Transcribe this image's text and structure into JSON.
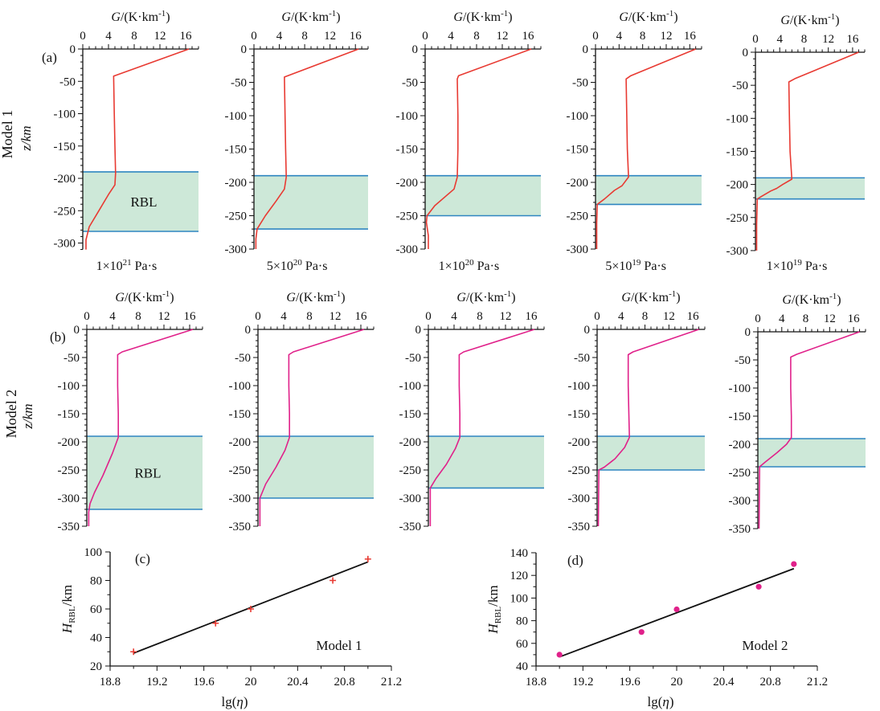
{
  "figure": {
    "row_labels": [
      "Model 1",
      "Model 2"
    ],
    "row_unit": "z/km",
    "panel_letters": [
      "(a)",
      "(b)",
      "(c)",
      "(d)"
    ],
    "rbl_label": "RBL",
    "axis_top_label": "G/(K·km⁻¹)"
  },
  "chart_data": [
    {
      "id": "a1",
      "type": "line",
      "group": "Model 1",
      "caption": "1×10²¹ Pa·s",
      "xlabel": "G/(K·km⁻¹)",
      "ylabel": "z/km",
      "xlim": [
        0,
        18
      ],
      "ylim": [
        -310,
        0
      ],
      "xticks": [
        0,
        4,
        8,
        12,
        16
      ],
      "yticks": [
        0,
        -50,
        -100,
        -150,
        -200,
        -250,
        -300
      ],
      "rbl": [
        -190,
        -282
      ],
      "rbl_label": "RBL",
      "color": "#e83a32",
      "points": [
        [
          16.5,
          0
        ],
        [
          4.8,
          -42
        ],
        [
          4.9,
          -100
        ],
        [
          5.0,
          -150
        ],
        [
          5.1,
          -192
        ],
        [
          5.0,
          -210
        ],
        [
          4.0,
          -225
        ],
        [
          2.5,
          -250
        ],
        [
          1.0,
          -275
        ],
        [
          0.5,
          -295
        ],
        [
          0.5,
          -310
        ]
      ]
    },
    {
      "id": "a2",
      "type": "line",
      "group": "Model 1",
      "caption": "5×10²⁰ Pa·s",
      "xlabel": "G/(K·km⁻¹)",
      "ylabel": "",
      "xlim": [
        0,
        18
      ],
      "ylim": [
        -300,
        0
      ],
      "xticks": [
        0,
        4,
        8,
        12,
        16
      ],
      "yticks": [
        0,
        -50,
        -100,
        -150,
        -200,
        -250,
        -300
      ],
      "rbl": [
        -190,
        -270
      ],
      "rbl_label": "",
      "color": "#e83a32",
      "points": [
        [
          16.5,
          0
        ],
        [
          4.8,
          -42
        ],
        [
          4.9,
          -100
        ],
        [
          5.0,
          -150
        ],
        [
          5.1,
          -192
        ],
        [
          4.8,
          -210
        ],
        [
          3.5,
          -228
        ],
        [
          1.8,
          -250
        ],
        [
          0.5,
          -270
        ],
        [
          0.3,
          -285
        ],
        [
          0.3,
          -300
        ]
      ]
    },
    {
      "id": "a3",
      "type": "line",
      "group": "Model 1",
      "caption": "1×10²⁰ Pa·s",
      "xlabel": "G/(K·km⁻¹)",
      "ylabel": "",
      "xlim": [
        0,
        18
      ],
      "ylim": [
        -300,
        0
      ],
      "xticks": [
        0,
        4,
        8,
        12,
        16
      ],
      "yticks": [
        0,
        -50,
        -100,
        -150,
        -200,
        -250,
        -300
      ],
      "rbl": [
        -190,
        -250
      ],
      "rbl_label": "",
      "color": "#e83a32",
      "points": [
        [
          16.5,
          0
        ],
        [
          5.2,
          -40
        ],
        [
          5.0,
          -45
        ],
        [
          5.1,
          -100
        ],
        [
          5.1,
          -150
        ],
        [
          5.0,
          -192
        ],
        [
          4.5,
          -210
        ],
        [
          1.5,
          -235
        ],
        [
          0.3,
          -250
        ],
        [
          0.2,
          -260
        ],
        [
          0.5,
          -280
        ],
        [
          0.5,
          -300
        ]
      ]
    },
    {
      "id": "a4",
      "type": "line",
      "group": "Model 1",
      "caption": "5×10¹⁹ Pa·s",
      "xlabel": "G/(K·km⁻¹)",
      "ylabel": "",
      "xlim": [
        0,
        18
      ],
      "ylim": [
        -300,
        0
      ],
      "xticks": [
        0,
        4,
        8,
        12,
        16
      ],
      "yticks": [
        0,
        -50,
        -100,
        -150,
        -200,
        -250,
        -300
      ],
      "rbl": [
        -190,
        -233
      ],
      "rbl_label": "",
      "color": "#e83a32",
      "points": [
        [
          17.0,
          0
        ],
        [
          6.0,
          -40
        ],
        [
          5.2,
          -45
        ],
        [
          5.3,
          -100
        ],
        [
          5.4,
          -150
        ],
        [
          5.6,
          -192
        ],
        [
          4.5,
          -205
        ],
        [
          3.2,
          -212
        ],
        [
          1.5,
          -225
        ],
        [
          0.3,
          -233
        ],
        [
          0.2,
          -260
        ],
        [
          0.2,
          -300
        ]
      ]
    },
    {
      "id": "a5",
      "type": "line",
      "group": "Model 1",
      "caption": "1×10¹⁹ Pa·s",
      "xlabel": "G/(K·km⁻¹)",
      "ylabel": "",
      "xlim": [
        0,
        18
      ],
      "ylim": [
        -300,
        0
      ],
      "xticks": [
        0,
        4,
        8,
        12,
        16
      ],
      "yticks": [
        0,
        -50,
        -100,
        -150,
        -200,
        -250,
        -300
      ],
      "rbl": [
        -190,
        -222
      ],
      "rbl_label": "",
      "color": "#e83a32",
      "points": [
        [
          17.0,
          0
        ],
        [
          6.5,
          -40
        ],
        [
          5.5,
          -45
        ],
        [
          5.6,
          -100
        ],
        [
          5.7,
          -150
        ],
        [
          6.0,
          -192
        ],
        [
          4.5,
          -200
        ],
        [
          3.5,
          -206
        ],
        [
          2.5,
          -210
        ],
        [
          1.0,
          -218
        ],
        [
          0.3,
          -222
        ],
        [
          0.2,
          -260
        ],
        [
          0.2,
          -300
        ]
      ]
    },
    {
      "id": "b1",
      "type": "line",
      "group": "Model 2",
      "caption": "",
      "xlabel": "G/(K·km⁻¹)",
      "ylabel": "z/km",
      "xlim": [
        0,
        18
      ],
      "ylim": [
        -350,
        0
      ],
      "xticks": [
        0,
        4,
        8,
        12,
        16
      ],
      "yticks": [
        0,
        -50,
        -100,
        -150,
        -200,
        -250,
        -300,
        -350
      ],
      "rbl": [
        -190,
        -320
      ],
      "rbl_label": "RBL",
      "color": "#e0218a",
      "points": [
        [
          16.5,
          0
        ],
        [
          5.5,
          -40
        ],
        [
          4.8,
          -45
        ],
        [
          4.8,
          -100
        ],
        [
          4.9,
          -150
        ],
        [
          4.9,
          -192
        ],
        [
          4.0,
          -220
        ],
        [
          2.5,
          -260
        ],
        [
          1.2,
          -290
        ],
        [
          0.5,
          -310
        ],
        [
          0.3,
          -325
        ],
        [
          0.3,
          -350
        ]
      ]
    },
    {
      "id": "b2",
      "type": "line",
      "group": "Model 2",
      "caption": "",
      "xlabel": "G/(K·km⁻¹)",
      "ylabel": "",
      "xlim": [
        0,
        18
      ],
      "ylim": [
        -350,
        0
      ],
      "xticks": [
        0,
        4,
        8,
        12,
        16
      ],
      "yticks": [
        0,
        -50,
        -100,
        -150,
        -200,
        -250,
        -300,
        -350
      ],
      "rbl": [
        -190,
        -300
      ],
      "rbl_label": "",
      "color": "#e0218a",
      "points": [
        [
          16.5,
          0
        ],
        [
          5.5,
          -40
        ],
        [
          4.8,
          -45
        ],
        [
          4.8,
          -100
        ],
        [
          4.9,
          -150
        ],
        [
          4.9,
          -192
        ],
        [
          4.2,
          -215
        ],
        [
          2.8,
          -245
        ],
        [
          1.2,
          -275
        ],
        [
          0.3,
          -300
        ],
        [
          0.3,
          -350
        ]
      ]
    },
    {
      "id": "b3",
      "type": "line",
      "group": "Model 2",
      "caption": "",
      "xlabel": "G/(K·km⁻¹)",
      "ylabel": "",
      "xlim": [
        0,
        18
      ],
      "ylim": [
        -350,
        0
      ],
      "xticks": [
        0,
        4,
        8,
        12,
        16
      ],
      "yticks": [
        0,
        -50,
        -100,
        -150,
        -200,
        -250,
        -300,
        -350
      ],
      "rbl": [
        -190,
        -282
      ],
      "rbl_label": "",
      "color": "#e0218a",
      "points": [
        [
          16.5,
          0
        ],
        [
          5.5,
          -40
        ],
        [
          4.8,
          -45
        ],
        [
          4.8,
          -100
        ],
        [
          4.9,
          -150
        ],
        [
          4.9,
          -192
        ],
        [
          4.2,
          -212
        ],
        [
          2.8,
          -240
        ],
        [
          1.2,
          -265
        ],
        [
          0.3,
          -282
        ],
        [
          0.3,
          -350
        ]
      ]
    },
    {
      "id": "b4",
      "type": "line",
      "group": "Model 2",
      "caption": "",
      "xlabel": "G/(K·km⁻¹)",
      "ylabel": "",
      "xlim": [
        0,
        18
      ],
      "ylim": [
        -350,
        0
      ],
      "xticks": [
        0,
        4,
        8,
        12,
        16
      ],
      "yticks": [
        0,
        -50,
        -100,
        -150,
        -200,
        -250,
        -300,
        -350
      ],
      "rbl": [
        -190,
        -250
      ],
      "rbl_label": "",
      "color": "#e0218a",
      "points": [
        [
          17.0,
          0
        ],
        [
          6.0,
          -40
        ],
        [
          5.2,
          -45
        ],
        [
          5.2,
          -100
        ],
        [
          5.3,
          -150
        ],
        [
          5.4,
          -192
        ],
        [
          4.6,
          -210
        ],
        [
          3.0,
          -230
        ],
        [
          1.2,
          -245
        ],
        [
          0.3,
          -250
        ],
        [
          0.2,
          -350
        ]
      ]
    },
    {
      "id": "b5",
      "type": "line",
      "group": "Model 2",
      "caption": "",
      "xlabel": "G/(K·km⁻¹)",
      "ylabel": "",
      "xlim": [
        0,
        18
      ],
      "ylim": [
        -350,
        0
      ],
      "xticks": [
        0,
        4,
        8,
        12,
        16
      ],
      "yticks": [
        0,
        -50,
        -100,
        -150,
        -200,
        -250,
        -300,
        -350
      ],
      "rbl": [
        -190,
        -240
      ],
      "rbl_label": "",
      "color": "#e0218a",
      "points": [
        [
          17.0,
          0
        ],
        [
          6.5,
          -40
        ],
        [
          5.5,
          -45
        ],
        [
          5.5,
          -100
        ],
        [
          5.6,
          -150
        ],
        [
          5.6,
          -188
        ],
        [
          4.8,
          -200
        ],
        [
          3.2,
          -215
        ],
        [
          1.2,
          -232
        ],
        [
          0.3,
          -240
        ],
        [
          0.2,
          -350
        ]
      ]
    },
    {
      "id": "c",
      "type": "scatter",
      "group": "Model 1",
      "caption": "Model 1",
      "xlabel": "lg(η)",
      "ylabel": "H_RBL/km",
      "xlim": [
        18.8,
        21.2
      ],
      "ylim": [
        20,
        100
      ],
      "xticks": [
        18.8,
        19.2,
        19.6,
        20,
        20.4,
        20.8,
        21.2
      ],
      "yticks": [
        20,
        40,
        60,
        80,
        100
      ],
      "marker": "+",
      "color": "#e83a32",
      "x": [
        19,
        19.7,
        20,
        20.7,
        21
      ],
      "y": [
        30,
        50,
        60,
        80,
        95
      ],
      "fit": [
        [
          19,
          29
        ],
        [
          21,
          93
        ]
      ]
    },
    {
      "id": "d",
      "type": "scatter",
      "group": "Model 2",
      "caption": "Model 2",
      "xlabel": "lg(η)",
      "ylabel": "H_RBL/km",
      "xlim": [
        18.8,
        21.2
      ],
      "ylim": [
        40,
        140
      ],
      "xticks": [
        18.8,
        19.2,
        19.6,
        20,
        20.4,
        20.8,
        21.2
      ],
      "yticks": [
        40,
        60,
        80,
        100,
        120,
        140
      ],
      "marker": "o",
      "color": "#e0218a",
      "x": [
        19,
        19.7,
        20,
        20.7,
        21
      ],
      "y": [
        50,
        70,
        90,
        110,
        130
      ],
      "fit": [
        [
          19,
          48
        ],
        [
          21,
          126
        ]
      ]
    }
  ]
}
